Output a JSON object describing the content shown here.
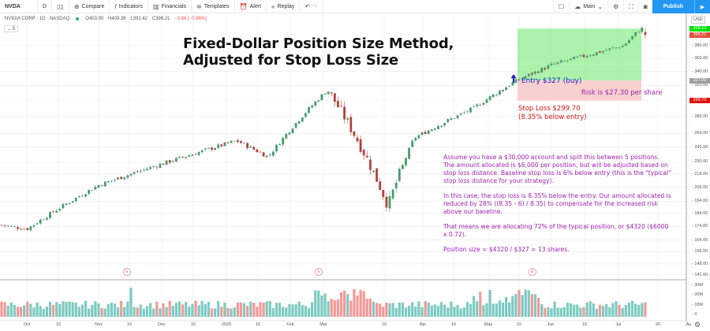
{
  "toolbar": {
    "symbol": "NVDA",
    "interval": "D",
    "items": [
      {
        "label": "Compare",
        "icon": "plus-circle-icon"
      },
      {
        "label": "Indicators",
        "icon": "function-icon"
      },
      {
        "label": "Financials",
        "icon": "bar-chart-icon"
      },
      {
        "label": "Templates",
        "icon": "template-icon"
      },
      {
        "label": "Alert",
        "icon": "alarm-icon"
      },
      {
        "label": "Replay",
        "icon": "rewind-icon"
      }
    ],
    "layout_name": "Main",
    "publish_label": "Publish"
  },
  "legend": {
    "name": "NVIDIA CORP · 1D · NASDAQ",
    "open": "O403.00",
    "high": "H409.36",
    "low": "L391.42",
    "close": "C398.21",
    "change": "−3.88 (−0.96%)",
    "collapse_label": "5"
  },
  "annotations": {
    "title_line1": "Fixed-Dollar Position Size Method,",
    "title_line2": "Adjusted for Stop Loss Size",
    "entry": "Entry $327 (buy)",
    "risk": "Risk is $27.30 per share",
    "stop_line1": "Stop Loss $299.70",
    "stop_line2": "(8.35% below entry)",
    "note_p1": "Assume you have a $30,000 account and split this between 5 positions. The amount allocated is $6,000 per position, but will be adjusted based on stop loss distance. Baseline stop loss is 6% below entry (this is the \"typical\" stop loss distance for your strategy).",
    "note_p2": "In this case, the stop loss is 8.35% below the entry. Our amount allocated is reduced by 28% ((8.35 - 6) / 8.35) to compensate for the increased risk above our baseline.",
    "note_p3": "That means we are allocating 72% of the typical position, or $4320 ($6000 x 0.72).",
    "note_p4": "Position size = $4320 / $327 = 13 shares."
  },
  "price_axis": {
    "currency": "USD",
    "tags": [
      {
        "label": "409.12",
        "color": "#00e000",
        "price": 409.12
      },
      {
        "label": "398.21",
        "color": "#e0503c",
        "price": 398.21
      },
      {
        "label": "327.00",
        "color": "#9e9e9e",
        "price": 327.0
      },
      {
        "label": "299.70",
        "color": "#e01010",
        "price": 299.7
      }
    ]
  },
  "colors": {
    "up": "#26a69a",
    "down": "#ef5350",
    "up_candle": "#4a9a6e",
    "down_candle": "#b0413a",
    "profit_zone": "#90ee90",
    "loss_zone": "#f8c8c8",
    "grid": "#ececec"
  },
  "chart_data": {
    "type": "candlestick",
    "title": "NVIDIA CORP · 1D · NASDAQ",
    "annotation_title": "Fixed-Dollar Position Size Method, Adjusted for Stop Loss Size",
    "xlabel": "",
    "ylabel": "Price (USD)",
    "y_ticks": [
      141,
      148,
      156,
      164,
      174,
      184,
      194,
      206,
      218,
      230,
      245,
      260,
      280,
      300,
      320,
      340,
      360,
      380
    ],
    "y_scale": "log",
    "ylim": [
      141,
      420
    ],
    "x_ticks": [
      "Oct",
      "15",
      "Nov",
      "15",
      "Dec",
      "16",
      "2020",
      "16",
      "Feb",
      "Mar",
      "16",
      "Apr",
      "16",
      "May",
      "15",
      "Jun",
      "15",
      "Jul",
      "20",
      "Au"
    ],
    "volume_ticks": [
      "0",
      "10M",
      "20M",
      "30M"
    ],
    "last": {
      "open": 403.0,
      "high": 409.36,
      "low": 391.42,
      "close": 398.21,
      "change": -3.88,
      "change_pct": -0.96
    },
    "trade": {
      "entry": 327.0,
      "stop": 299.7,
      "target_top": 409.12,
      "risk_per_share": 27.3,
      "stop_pct": 8.35
    },
    "key_points": [
      {
        "date": "late Sep 2019",
        "price": 175
      },
      {
        "date": "early Oct 2019",
        "price": 172
      },
      {
        "date": "mid Nov 2019",
        "price": 208
      },
      {
        "date": "late Dec 2019",
        "price": 238
      },
      {
        "date": "mid Jan 2020",
        "price": 252
      },
      {
        "date": "late Jan 2020",
        "price": 235
      },
      {
        "date": "late Feb 2020",
        "price": 314
      },
      {
        "date": "mid Mar 2020",
        "price": 190
      },
      {
        "date": "late Mar 2020",
        "price": 255
      },
      {
        "date": "late Apr 2020",
        "price": 290
      },
      {
        "date": "mid May 2020",
        "price": 327
      },
      {
        "date": "early Jun 2020",
        "price": 350
      },
      {
        "date": "early Jul 2020",
        "price": 380
      },
      {
        "date": "mid Jul 2020",
        "price": 409
      }
    ],
    "events": [
      "E (Nov earnings)",
      "E (Feb earnings)",
      "E (May earnings)"
    ],
    "volume_peak_M": 30,
    "legend_position": "top-left"
  }
}
